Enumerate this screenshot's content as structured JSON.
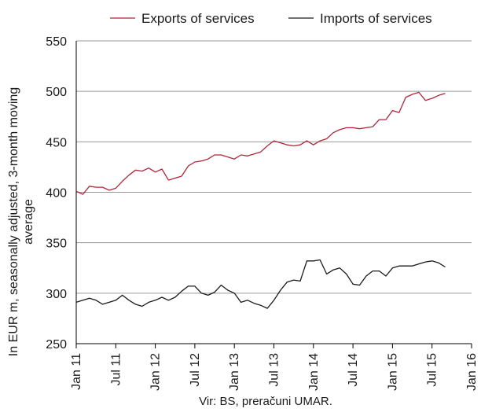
{
  "chart_data": {
    "type": "line",
    "title": "",
    "xlabel": "",
    "ylabel": "In EUR m, seasonally adjusted, 3-month moving average",
    "ylabel_lines": [
      "In EUR m, seasonally adjusted, 3-month moving",
      "average"
    ],
    "source": "Vir: BS, preračuni UMAR.",
    "ylim": [
      250,
      550
    ],
    "yticks": [
      250,
      300,
      350,
      400,
      450,
      500,
      550
    ],
    "xticks": [
      "Jan 11",
      "Jul 11",
      "Jan 12",
      "Jul 12",
      "Jan 13",
      "Jul 13",
      "Jan 14",
      "Jul 14",
      "Jan 15",
      "Jul 15",
      "Jan 16"
    ],
    "grid": "horizontal",
    "legend_position": "top",
    "x": [
      "Jan 11",
      "Feb 11",
      "Mar 11",
      "Apr 11",
      "May 11",
      "Jun 11",
      "Jul 11",
      "Aug 11",
      "Sep 11",
      "Oct 11",
      "Nov 11",
      "Dec 11",
      "Jan 12",
      "Feb 12",
      "Mar 12",
      "Apr 12",
      "May 12",
      "Jun 12",
      "Jul 12",
      "Aug 12",
      "Sep 12",
      "Oct 12",
      "Nov 12",
      "Dec 12",
      "Jan 13",
      "Feb 13",
      "Mar 13",
      "Apr 13",
      "May 13",
      "Jun 13",
      "Jul 13",
      "Aug 13",
      "Sep 13",
      "Oct 13",
      "Nov 13",
      "Dec 13",
      "Jan 14",
      "Feb 14",
      "Mar 14",
      "Apr 14",
      "May 14",
      "Jun 14",
      "Jul 14",
      "Aug 14",
      "Sep 14",
      "Oct 14",
      "Nov 14",
      "Dec 14",
      "Jan 15",
      "Feb 15",
      "Mar 15",
      "Apr 15",
      "May 15",
      "Jun 15",
      "Jul 15",
      "Aug 15",
      "Sep 15",
      "Oct 15"
    ],
    "series": [
      {
        "name": "Exports of services",
        "color": "#b0263a",
        "values": [
          401,
          398,
          406,
          405,
          405,
          402,
          404,
          411,
          417,
          422,
          421,
          424,
          420,
          423,
          412,
          414,
          416,
          426,
          430,
          431,
          433,
          437,
          437,
          435,
          433,
          437,
          436,
          438,
          440,
          446,
          451,
          449,
          447,
          446,
          447,
          451,
          447,
          451,
          453,
          459,
          462,
          464,
          464,
          463,
          464,
          465,
          472,
          472,
          481,
          479,
          494,
          497,
          499,
          491,
          493,
          496,
          498,
          null
        ],
        "values_note": ""
      },
      {
        "name": "Imports of services",
        "color": "#1a1a1a",
        "values": [
          291,
          293,
          295,
          293,
          289,
          291,
          293,
          298,
          293,
          289,
          287,
          291,
          293,
          296,
          293,
          296,
          302,
          307,
          307,
          300,
          298,
          301,
          308,
          303,
          300,
          291,
          293,
          290,
          288,
          285,
          293,
          303,
          311,
          313,
          312,
          332,
          332,
          333,
          319,
          323,
          325,
          319,
          309,
          308,
          317,
          322,
          322,
          317,
          325,
          327,
          327,
          327,
          329,
          331,
          332,
          330,
          326,
          null
        ]
      }
    ]
  }
}
